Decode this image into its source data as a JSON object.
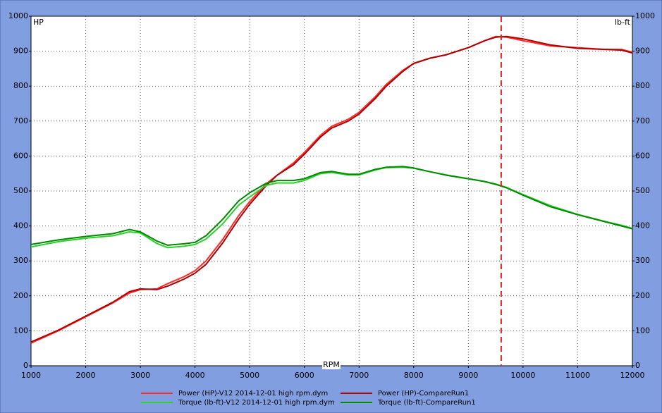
{
  "chart_data": {
    "type": "line",
    "y_label": "HP",
    "y2_label": "lb-ft",
    "x_label": "RPM",
    "x": [
      1000,
      1500,
      2000,
      2500,
      2800,
      3000,
      3300,
      3500,
      3800,
      4000,
      4200,
      4500,
      4800,
      5000,
      5300,
      5500,
      5800,
      6000,
      6300,
      6500,
      6800,
      7000,
      7300,
      7500,
      7800,
      8000,
      8300,
      8600,
      9000,
      9300,
      9500,
      9700,
      10000,
      10500,
      11000,
      11500,
      11800,
      12000
    ],
    "series": [
      {
        "name": "Power (HP)-V12 2014-12-01 high rpm.dym",
        "color": "#ff2a2a",
        "values": [
          65,
          100,
          140,
          180,
          208,
          218,
          220,
          235,
          255,
          272,
          300,
          360,
          430,
          470,
          520,
          545,
          580,
          610,
          660,
          685,
          705,
          725,
          770,
          805,
          845,
          865,
          880,
          890,
          910,
          930,
          942,
          940,
          930,
          915,
          910,
          905,
          905,
          897
        ]
      },
      {
        "name": "Power (HP)-CompareRun1",
        "color": "#b00000",
        "values": [
          68,
          102,
          142,
          182,
          212,
          220,
          218,
          228,
          248,
          265,
          290,
          350,
          420,
          462,
          515,
          545,
          575,
          605,
          655,
          680,
          700,
          720,
          765,
          800,
          842,
          865,
          880,
          890,
          910,
          930,
          940,
          942,
          935,
          918,
          908,
          905,
          903,
          895
        ]
      },
      {
        "name": "Torque (lb-ft)-V12 2014-12-01 high rpm.dym",
        "color": "#2ed02e",
        "axis": "y2",
        "values": [
          340,
          355,
          365,
          372,
          383,
          380,
          350,
          338,
          342,
          347,
          362,
          405,
          460,
          483,
          516,
          523,
          523,
          530,
          550,
          553,
          546,
          546,
          560,
          567,
          568,
          565,
          555,
          546,
          535,
          527,
          520,
          510,
          490,
          458,
          433,
          413,
          402,
          393
        ]
      },
      {
        "name": "Torque (lb-ft)-CompareRun1",
        "color": "#008a00",
        "axis": "y2",
        "values": [
          347,
          360,
          370,
          378,
          390,
          383,
          357,
          345,
          349,
          353,
          372,
          418,
          472,
          495,
          522,
          530,
          530,
          535,
          553,
          556,
          548,
          548,
          562,
          568,
          570,
          566,
          555,
          545,
          535,
          527,
          519,
          509,
          488,
          455,
          432,
          412,
          400,
          392
        ]
      }
    ],
    "cursor_x": 9600,
    "cursor_color": "#e02020",
    "xlim": [
      1000,
      12000
    ],
    "xticks": [
      1000,
      2000,
      3000,
      4000,
      5000,
      6000,
      7000,
      8000,
      9000,
      10000,
      11000,
      12000
    ],
    "ylim": [
      0,
      1000
    ],
    "yticks": [
      0,
      100,
      200,
      300,
      400,
      500,
      600,
      700,
      800,
      900,
      1000
    ],
    "y2lim": [
      0,
      1000
    ],
    "y2ticks": [
      0,
      100,
      200,
      300,
      400,
      500,
      600,
      700,
      800,
      900,
      1000
    ],
    "grid": true
  }
}
